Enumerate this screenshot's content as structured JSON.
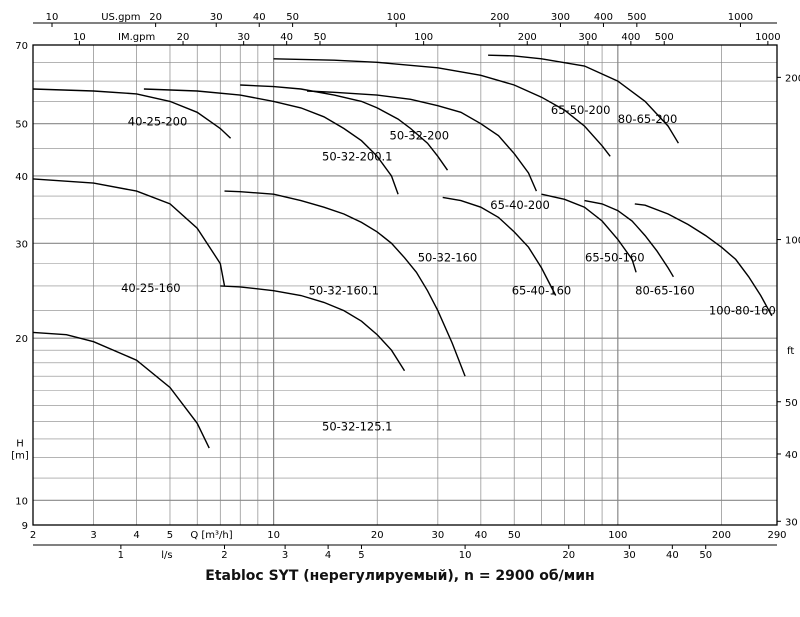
{
  "chart_data": {
    "type": "line",
    "caption": "Etabloc SYT (нерегулируемый), n = 2900 об/мин",
    "x_scale": "log",
    "y_scale": "log",
    "xlim": [
      2,
      290
    ],
    "ylim": [
      9,
      70
    ],
    "bottom_axis": {
      "label": "Q [m³/h]",
      "ticks": [
        "2",
        "3",
        "4",
        "5",
        "10",
        "20",
        "30",
        "40",
        "50",
        "100",
        "200",
        "290"
      ],
      "tick_values": [
        2,
        3,
        4,
        5,
        10,
        20,
        30,
        40,
        50,
        100,
        200,
        290
      ]
    },
    "bottom_axis_2": {
      "label": "l/s",
      "ticks": [
        "1",
        "2",
        "3",
        "4",
        "5",
        "10",
        "20",
        "30",
        "40",
        "50"
      ],
      "tick_values": [
        1,
        2,
        3,
        4,
        5,
        10,
        20,
        30,
        40,
        50
      ],
      "factor": 3.6
    },
    "top_axis": {
      "label": "US.gpm",
      "ticks": [
        "10",
        "20",
        "30",
        "40",
        "50",
        "100",
        "200",
        "300",
        "400",
        "500",
        "1000"
      ],
      "tick_values": [
        10,
        20,
        30,
        40,
        50,
        100,
        200,
        300,
        400,
        500,
        1000
      ],
      "factor": 0.2271
    },
    "top_axis_2": {
      "label": "IM.gpm",
      "ticks": [
        "10",
        "20",
        "30",
        "40",
        "50",
        "100",
        "200",
        "300",
        "400",
        "500",
        "1000"
      ],
      "tick_values": [
        10,
        20,
        30,
        40,
        50,
        100,
        200,
        300,
        400,
        500,
        1000
      ],
      "factor": 0.2728
    },
    "left_axis": {
      "label": "H [m]",
      "ticks": [
        "9",
        "10",
        "20",
        "30",
        "40",
        "50",
        "70"
      ],
      "tick_values": [
        9,
        10,
        20,
        30,
        40,
        50,
        70
      ]
    },
    "right_axis": {
      "label": "ft",
      "ticks": [
        "30",
        "40",
        "50",
        "100",
        "200"
      ],
      "tick_values": [
        30,
        40,
        50,
        100,
        200
      ],
      "factor": 0.3048
    },
    "series": [
      {
        "name": "40-25-200",
        "label_at": [
          4.6,
          50.5
        ],
        "x": [
          2,
          3,
          4,
          5,
          6,
          7,
          7.5
        ],
        "y": [
          58,
          57.5,
          56.8,
          55,
          52.5,
          49,
          47
        ]
      },
      {
        "name": "40-25-160",
        "label_at": [
          4.4,
          24.8
        ],
        "x": [
          2,
          3,
          4,
          5,
          6,
          7,
          7.2
        ],
        "y": [
          39.5,
          38.8,
          37.5,
          35.5,
          32,
          27.5,
          25
        ]
      },
      {
        "name": "50-32-125.1",
        "label_at": [
          17.5,
          13.7
        ],
        "x": [
          2,
          2.5,
          3,
          4,
          5,
          6,
          6.5
        ],
        "y": [
          20.5,
          20.3,
          19.7,
          18.2,
          16.2,
          13.9,
          12.5
        ]
      },
      {
        "name": "50-32-200.1",
        "label_at": [
          17.5,
          43.5
        ],
        "x": [
          4.2,
          6,
          8,
          10,
          12,
          14,
          16,
          18,
          20,
          22,
          23
        ],
        "y": [
          58,
          57.5,
          56.5,
          55,
          53.5,
          51.5,
          49,
          46.5,
          43.5,
          40,
          37
        ]
      },
      {
        "name": "50-32-200",
        "label_at": [
          26.5,
          47.5
        ],
        "x": [
          8,
          10,
          12,
          15,
          18,
          20,
          23,
          25,
          28,
          30,
          32
        ],
        "y": [
          59,
          58.6,
          58,
          56.5,
          55,
          53.5,
          51,
          49,
          46,
          43.5,
          41
        ]
      },
      {
        "name": "50-32-160.1",
        "label_at": [
          16,
          24.5
        ],
        "x": [
          7,
          8,
          10,
          12,
          14,
          16,
          18,
          20,
          22,
          24
        ],
        "y": [
          25,
          24.9,
          24.5,
          24,
          23.3,
          22.5,
          21.5,
          20.3,
          19,
          17.4
        ]
      },
      {
        "name": "50-32-160",
        "label_at": [
          32,
          28.2
        ],
        "x": [
          7.2,
          8,
          10,
          12,
          14,
          16,
          18,
          20,
          22,
          24,
          26,
          28,
          30,
          33,
          36
        ],
        "y": [
          37.5,
          37.4,
          37,
          36,
          35,
          34,
          32.8,
          31.5,
          30,
          28.2,
          26.5,
          24.5,
          22.5,
          19.6,
          17
        ]
      },
      {
        "name": "65-50-200",
        "label_at": [
          78,
          53
        ],
        "x": [
          10,
          15,
          20,
          30,
          40,
          50,
          60,
          70,
          80,
          90,
          95
        ],
        "y": [
          66,
          65.6,
          65,
          63.5,
          61.5,
          59,
          56,
          53,
          49.5,
          45.5,
          43.5
        ]
      },
      {
        "name": "80-65-200",
        "label_at": [
          122,
          51
        ],
        "x": [
          42,
          50,
          60,
          80,
          100,
          120,
          140,
          150
        ],
        "y": [
          67,
          66.8,
          66,
          64,
          60,
          55,
          49.5,
          46
        ]
      },
      {
        "name": "65-40-200",
        "label_at": [
          52,
          35.3
        ],
        "x": [
          12.5,
          15,
          20,
          25,
          30,
          35,
          40,
          45,
          50,
          55,
          58
        ],
        "y": [
          57.5,
          57.2,
          56.5,
          55.5,
          54,
          52.5,
          50,
          47.5,
          44,
          40.5,
          37.5
        ]
      },
      {
        "name": "65-40-160",
        "label_at": [
          60,
          24.5
        ],
        "x": [
          31,
          35,
          40,
          45,
          50,
          55,
          60,
          66
        ],
        "y": [
          36.5,
          36,
          35,
          33.5,
          31.5,
          29.5,
          27,
          24
        ]
      },
      {
        "name": "65-50-160",
        "label_at": [
          98,
          28.2
        ],
        "x": [
          60,
          70,
          80,
          90,
          100,
          110,
          113
        ],
        "y": [
          37,
          36.2,
          35,
          33,
          30.5,
          28,
          26.5
        ]
      },
      {
        "name": "80-65-160",
        "label_at": [
          137,
          24.5
        ],
        "x": [
          80,
          90,
          100,
          110,
          120,
          130,
          140,
          145
        ],
        "y": [
          36,
          35.5,
          34.5,
          33,
          31,
          29,
          27,
          26
        ]
      },
      {
        "name": "100-80-160",
        "label_at": [
          230,
          22.5
        ],
        "x": [
          112,
          120,
          140,
          160,
          180,
          200,
          220,
          240,
          260,
          280
        ],
        "y": [
          35.5,
          35.3,
          34,
          32.5,
          31,
          29.5,
          28,
          26,
          24,
          22
        ]
      }
    ]
  }
}
